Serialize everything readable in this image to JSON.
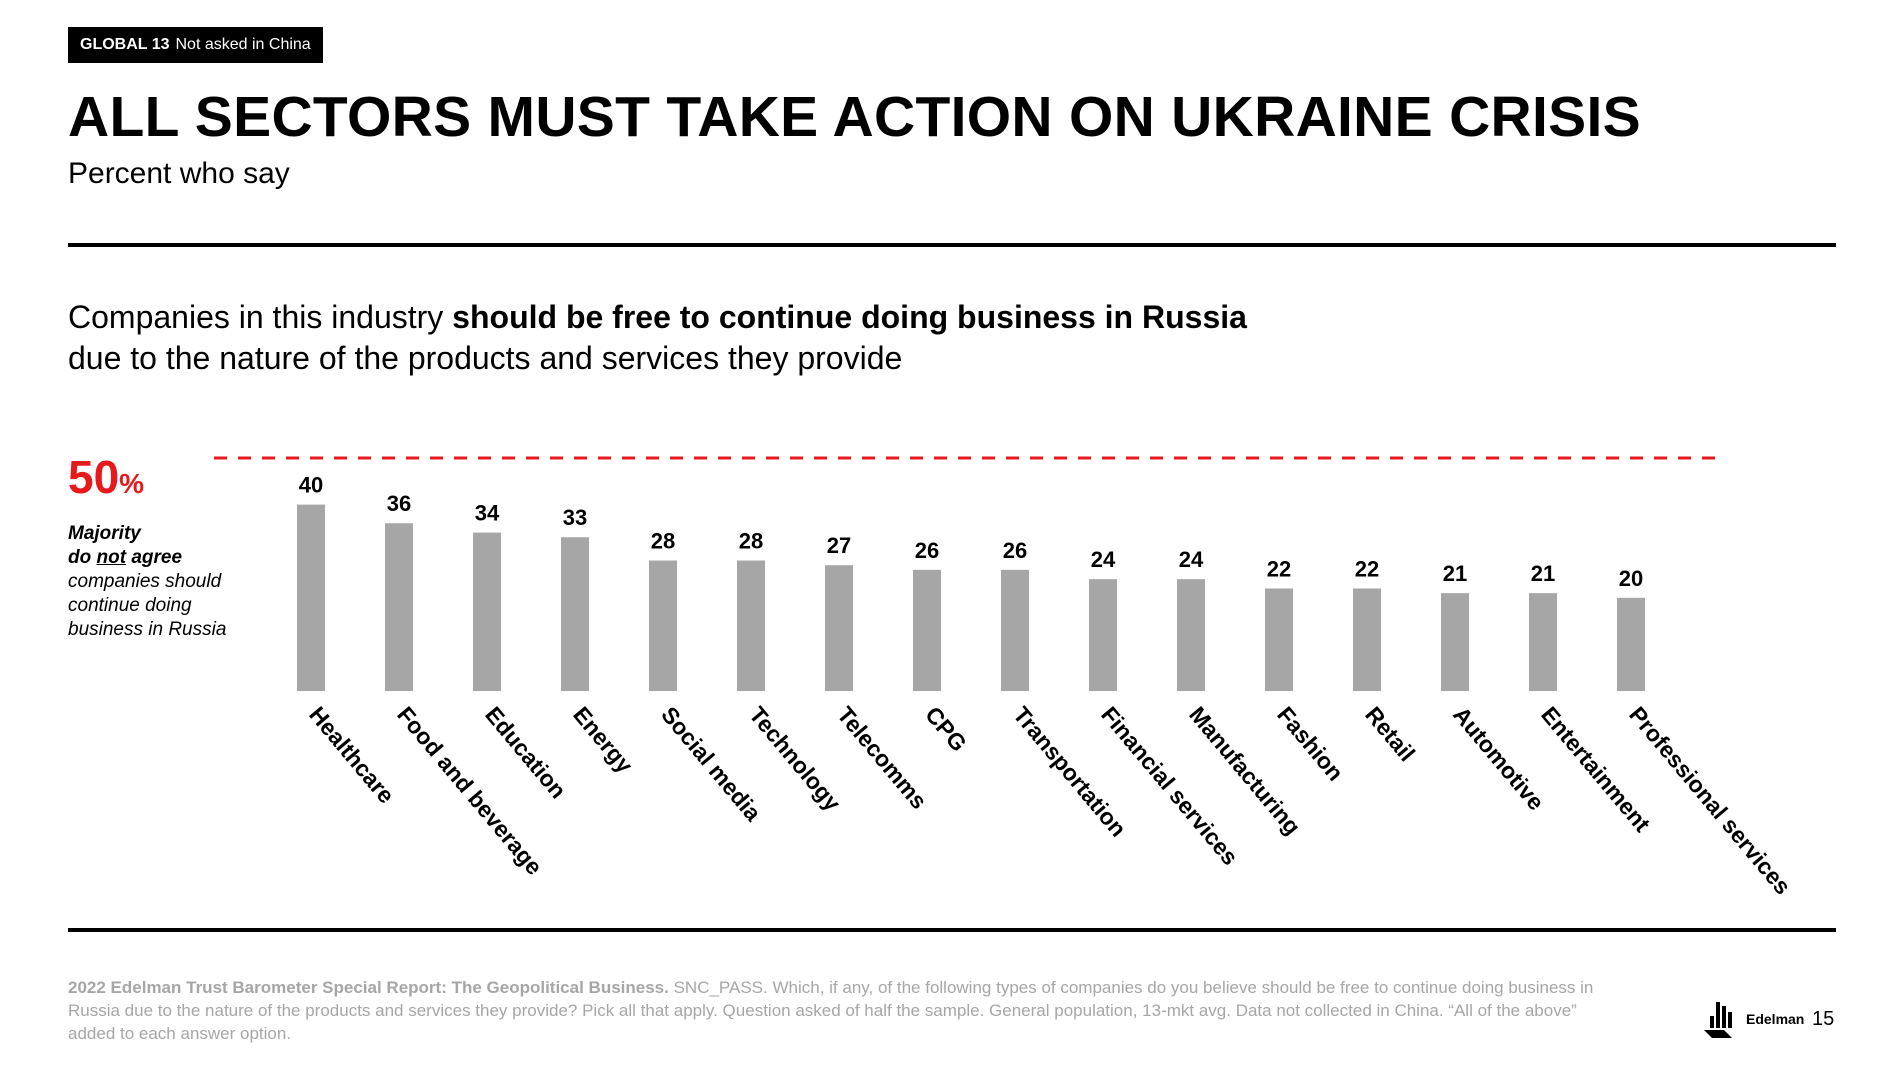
{
  "badge": {
    "label": "GLOBAL 13",
    "note": "Not asked in China"
  },
  "title": "ALL SECTORS MUST TAKE ACTION ON UKRAINE CRISIS",
  "subtitle": "Percent who say",
  "question": {
    "lead": "Companies in this industry ",
    "emphasis": "should be free to continue doing business in Russia",
    "rest": "due to the nature of the products and services they provide"
  },
  "threshold": {
    "value": "50",
    "unit": "%"
  },
  "note": {
    "line1": "Majority",
    "line2_pre": "do ",
    "line2_underline": "not",
    "line2_post": " agree",
    "line3": "companies should",
    "line4": "continue doing",
    "line5": "business in Russia"
  },
  "colors": {
    "bar": "#a6a6a6",
    "threshold": "#e8191b"
  },
  "chart_data": {
    "type": "bar",
    "title": "Companies in this industry should be free to continue doing business in Russia due to the nature of the products and services they provide",
    "categories": [
      "Healthcare",
      "Food and beverage",
      "Education",
      "Energy",
      "Social media",
      "Technology",
      "Telecomms",
      "CPG",
      "Transportation",
      "Financial services",
      "Manufacturing",
      "Fashion",
      "Retail",
      "Automotive",
      "Entertainment",
      "Professional services"
    ],
    "values": [
      40,
      36,
      34,
      33,
      28,
      28,
      27,
      26,
      26,
      24,
      24,
      22,
      22,
      21,
      21,
      20
    ],
    "unit": "percent",
    "reference_line": {
      "value": 50,
      "style": "dashed"
    },
    "ylim": [
      0,
      50
    ],
    "grid": false,
    "xlabel": "",
    "ylabel": ""
  },
  "footnote": {
    "source": "2022 Edelman Trust Barometer Special Report: The Geopolitical Business.",
    "text": " SNC_PASS. Which, if any, of the following types of companies do you believe should be free to continue doing business in Russia due to the nature of the products and services they provide? Pick all that apply. Question asked of half the sample. General population, 13-mkt avg. Data not collected in China. “All of the above” added to each answer option."
  },
  "logo": "Edelman",
  "page_number": "15"
}
